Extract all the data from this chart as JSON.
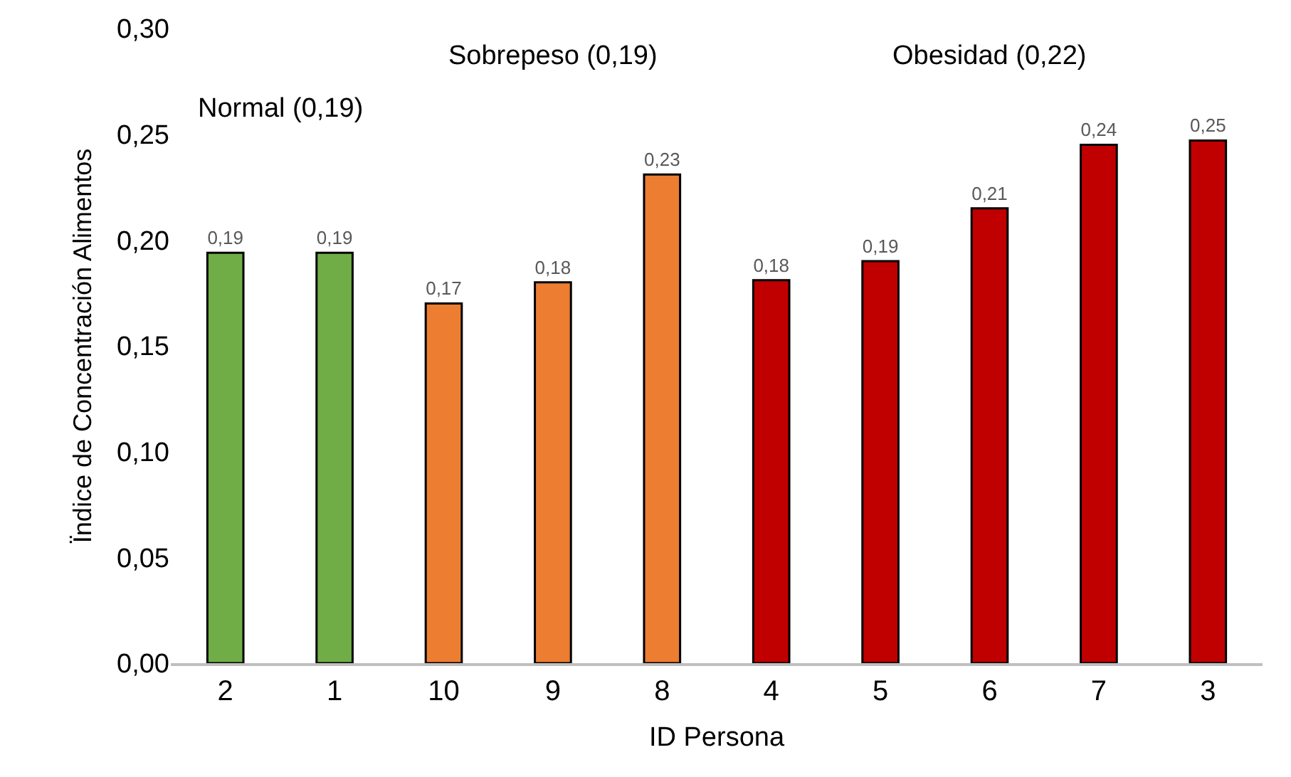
{
  "chart_data": {
    "type": "bar",
    "xlabel": "ID Persona",
    "ylabel": "Ïndice de Concentración Alimentos",
    "categories": [
      "2",
      "1",
      "10",
      "9",
      "8",
      "4",
      "5",
      "6",
      "7",
      "3"
    ],
    "values": [
      0.194,
      0.194,
      0.17,
      0.18,
      0.231,
      0.181,
      0.19,
      0.215,
      0.245,
      0.247
    ],
    "value_labels": [
      "0,19",
      "0,19",
      "0,17",
      "0,18",
      "0,23",
      "0,18",
      "0,19",
      "0,21",
      "0,24",
      "0,25"
    ],
    "colors": [
      "#70ad47",
      "#70ad47",
      "#ed7d31",
      "#ed7d31",
      "#ed7d31",
      "#c00000",
      "#c00000",
      "#c00000",
      "#c00000",
      "#c00000"
    ],
    "ylim": [
      0,
      0.3
    ],
    "yticks": [
      {
        "value": 0,
        "label": "0,00"
      },
      {
        "value": 0.05,
        "label": "0,05"
      },
      {
        "value": 0.1,
        "label": "0,10"
      },
      {
        "value": 0.15,
        "label": "0,15"
      },
      {
        "value": 0.2,
        "label": "0,20"
      },
      {
        "value": 0.25,
        "label": "0,25"
      },
      {
        "value": 0.3,
        "label": "0,30"
      }
    ],
    "annotations": [
      "Normal (0,19)",
      "Sobrepeso (0,19)",
      "Obesidad (0,22)"
    ],
    "grid": false,
    "legend": false
  }
}
